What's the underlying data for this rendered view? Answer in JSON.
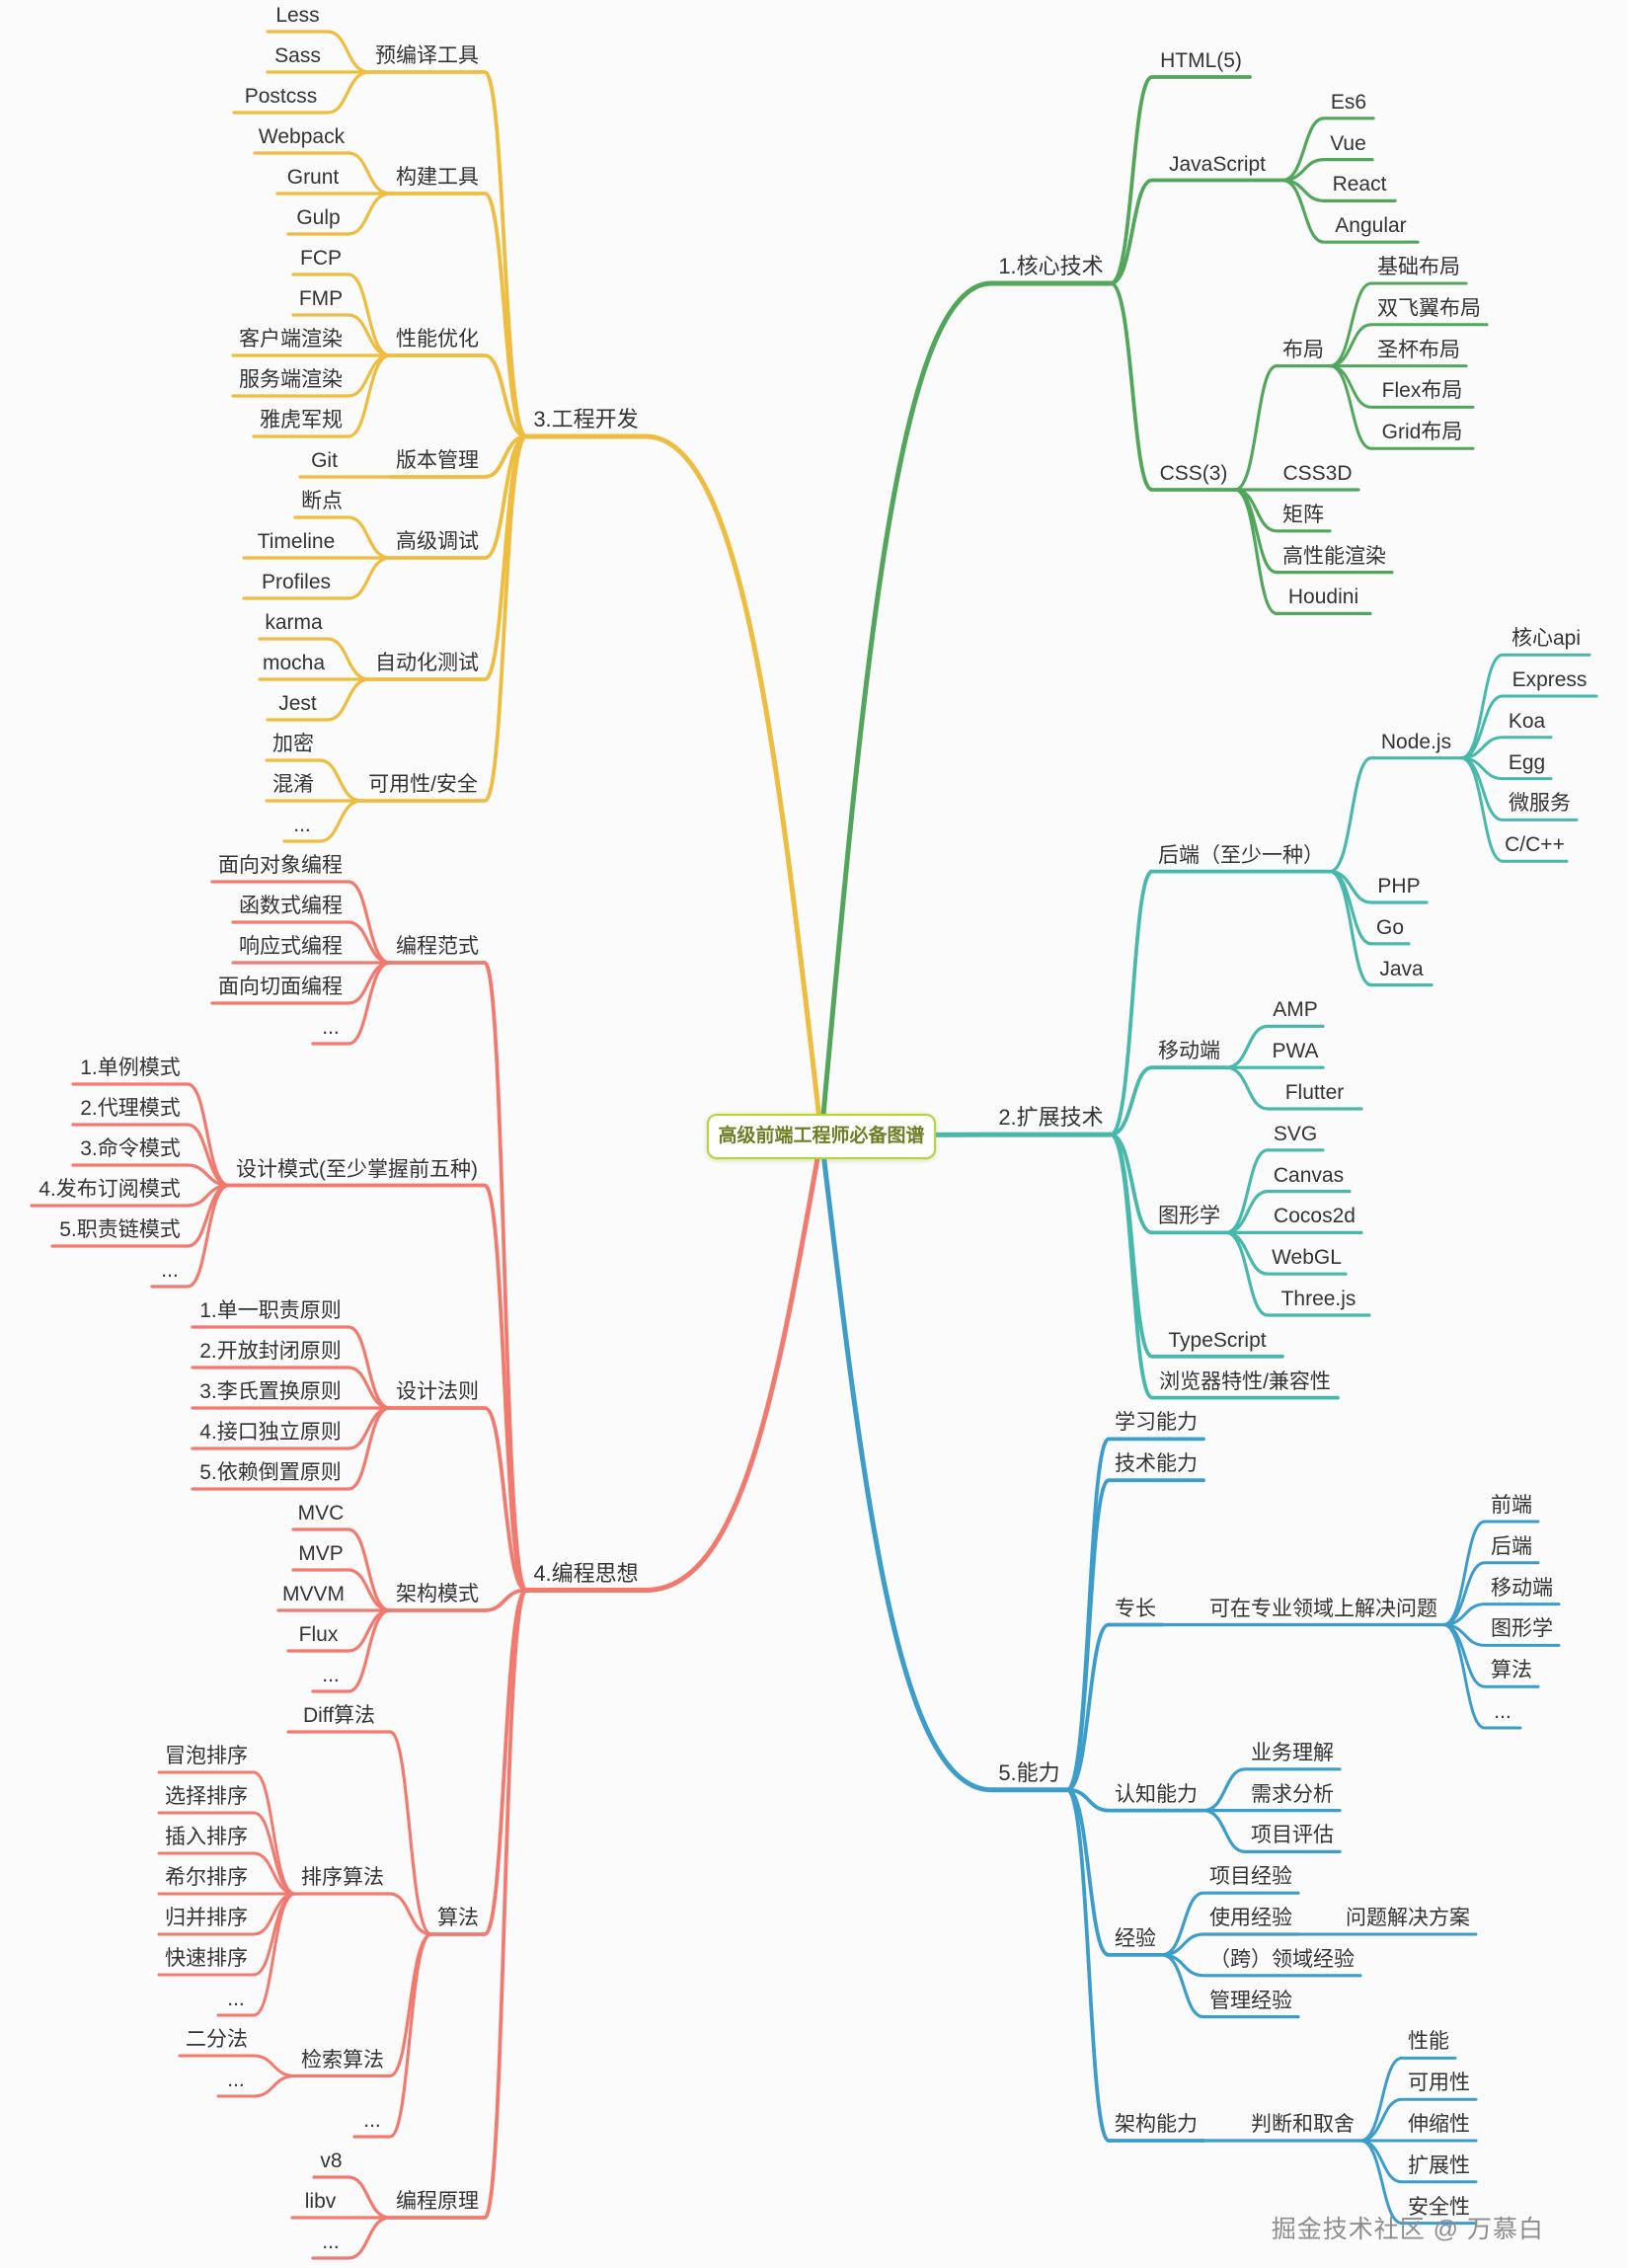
{
  "title": "高级前端工程师必备图谱",
  "watermark": "掘金技术社区 @ 万慕白",
  "colors": {
    "green": "#52a65c",
    "teal": "#47b8ab",
    "blue": "#3d9dca",
    "yellow": "#eebd3f",
    "red": "#f2796d",
    "center_border": "#b5d43b",
    "center_text": "#6d7f25",
    "node_text": "#333333",
    "watermark_text": "#8d8d8d",
    "background": "#fbfbfb"
  },
  "branches": [
    {
      "label": "1.核心技术",
      "side": "right",
      "color": "green",
      "children": [
        {
          "label": "HTML(5)"
        },
        {
          "label": "JavaScript",
          "children": [
            {
              "label": "Es6"
            },
            {
              "label": "Vue"
            },
            {
              "label": "React"
            },
            {
              "label": "Angular"
            }
          ]
        },
        {
          "label": "CSS(3)",
          "children": [
            {
              "label": "布局",
              "children": [
                {
                  "label": "基础布局"
                },
                {
                  "label": "双飞翼布局"
                },
                {
                  "label": "圣杯布局"
                },
                {
                  "label": "Flex布局"
                },
                {
                  "label": "Grid布局"
                }
              ]
            },
            {
              "label": "CSS3D"
            },
            {
              "label": "矩阵"
            },
            {
              "label": "高性能渲染"
            },
            {
              "label": "Houdini"
            }
          ]
        }
      ]
    },
    {
      "label": "2.扩展技术",
      "side": "right",
      "color": "teal",
      "children": [
        {
          "label": "后端（至少一种）",
          "children": [
            {
              "label": "Node.js",
              "children": [
                {
                  "label": "核心api"
                },
                {
                  "label": "Express"
                },
                {
                  "label": "Koa"
                },
                {
                  "label": "Egg"
                },
                {
                  "label": "微服务"
                },
                {
                  "label": "C/C++"
                }
              ]
            },
            {
              "label": "PHP"
            },
            {
              "label": "Go"
            },
            {
              "label": "Java"
            }
          ]
        },
        {
          "label": "移动端",
          "children": [
            {
              "label": "AMP"
            },
            {
              "label": "PWA"
            },
            {
              "label": "Flutter"
            }
          ]
        },
        {
          "label": "图形学",
          "children": [
            {
              "label": "SVG"
            },
            {
              "label": "Canvas"
            },
            {
              "label": "Cocos2d"
            },
            {
              "label": "WebGL"
            },
            {
              "label": "Three.js"
            }
          ]
        },
        {
          "label": "TypeScript"
        },
        {
          "label": "浏览器特性/兼容性"
        }
      ]
    },
    {
      "label": "3.工程开发",
      "side": "left",
      "color": "yellow",
      "children": [
        {
          "label": "预编译工具",
          "children": [
            {
              "label": "Less"
            },
            {
              "label": "Sass"
            },
            {
              "label": "Postcss"
            }
          ]
        },
        {
          "label": "构建工具",
          "children": [
            {
              "label": "Webpack"
            },
            {
              "label": "Grunt"
            },
            {
              "label": "Gulp"
            }
          ]
        },
        {
          "label": "性能优化",
          "children": [
            {
              "label": "FCP"
            },
            {
              "label": "FMP"
            },
            {
              "label": "客户端渲染"
            },
            {
              "label": "服务端渲染"
            },
            {
              "label": "雅虎军规"
            }
          ]
        },
        {
          "label": "版本管理",
          "children": [
            {
              "label": "Git"
            }
          ]
        },
        {
          "label": "高级调试",
          "children": [
            {
              "label": "断点"
            },
            {
              "label": "Timeline"
            },
            {
              "label": "Profiles"
            }
          ]
        },
        {
          "label": "自动化测试",
          "children": [
            {
              "label": "karma"
            },
            {
              "label": "mocha"
            },
            {
              "label": "Jest"
            }
          ]
        },
        {
          "label": "可用性/安全",
          "children": [
            {
              "label": "加密"
            },
            {
              "label": "混淆"
            },
            {
              "label": "..."
            }
          ]
        }
      ]
    },
    {
      "label": "4.编程思想",
      "side": "left",
      "color": "red",
      "children": [
        {
          "label": "编程范式",
          "children": [
            {
              "label": "面向对象编程"
            },
            {
              "label": "函数式编程"
            },
            {
              "label": "响应式编程"
            },
            {
              "label": "面向切面编程"
            },
            {
              "label": "..."
            }
          ]
        },
        {
          "label": "设计模式(至少掌握前五种)",
          "children": [
            {
              "label": "1.单例模式"
            },
            {
              "label": "2.代理模式"
            },
            {
              "label": "3.命令模式"
            },
            {
              "label": "4.发布订阅模式"
            },
            {
              "label": "5.职责链模式"
            },
            {
              "label": "..."
            }
          ]
        },
        {
          "label": "设计法则",
          "children": [
            {
              "label": "1.单一职责原则"
            },
            {
              "label": "2.开放封闭原则"
            },
            {
              "label": "3.李氏置换原则"
            },
            {
              "label": "4.接口独立原则"
            },
            {
              "label": "5.依赖倒置原则"
            }
          ]
        },
        {
          "label": "架构模式",
          "children": [
            {
              "label": "MVC"
            },
            {
              "label": "MVP"
            },
            {
              "label": "MVVM"
            },
            {
              "label": "Flux"
            },
            {
              "label": "..."
            }
          ]
        },
        {
          "label": "算法",
          "children": [
            {
              "label": "Diff算法"
            },
            {
              "label": "排序算法",
              "children": [
                {
                  "label": "冒泡排序"
                },
                {
                  "label": "选择排序"
                },
                {
                  "label": "插入排序"
                },
                {
                  "label": "希尔排序"
                },
                {
                  "label": "归并排序"
                },
                {
                  "label": "快速排序"
                },
                {
                  "label": "..."
                }
              ]
            },
            {
              "label": "检索算法",
              "children": [
                {
                  "label": "二分法"
                },
                {
                  "label": "..."
                }
              ]
            },
            {
              "label": "..."
            }
          ]
        },
        {
          "label": "编程原理",
          "children": [
            {
              "label": "v8"
            },
            {
              "label": "libv"
            },
            {
              "label": "..."
            }
          ]
        }
      ]
    },
    {
      "label": "5.能力",
      "side": "right",
      "color": "blue",
      "children": [
        {
          "label": "学习能力"
        },
        {
          "label": "技术能力"
        },
        {
          "label": "专长",
          "children": [
            {
              "label": "可在专业领域上解决问题",
              "children": [
                {
                  "label": "前端"
                },
                {
                  "label": "后端"
                },
                {
                  "label": "移动端"
                },
                {
                  "label": "图形学"
                },
                {
                  "label": "算法"
                },
                {
                  "label": "..."
                }
              ]
            }
          ]
        },
        {
          "label": "认知能力",
          "children": [
            {
              "label": "业务理解"
            },
            {
              "label": "需求分析"
            },
            {
              "label": "项目评估"
            }
          ]
        },
        {
          "label": "经验",
          "children": [
            {
              "label": "项目经验"
            },
            {
              "label": "使用经验",
              "children": [
                {
                  "label": "问题解决方案"
                }
              ]
            },
            {
              "label": "（跨）领域经验"
            },
            {
              "label": "管理经验"
            }
          ]
        },
        {
          "label": "架构能力",
          "children": [
            {
              "label": "判断和取舍",
              "children": [
                {
                  "label": "性能"
                },
                {
                  "label": "可用性"
                },
                {
                  "label": "伸缩性"
                },
                {
                  "label": "扩展性"
                },
                {
                  "label": "安全性"
                }
              ]
            }
          ]
        }
      ]
    }
  ]
}
